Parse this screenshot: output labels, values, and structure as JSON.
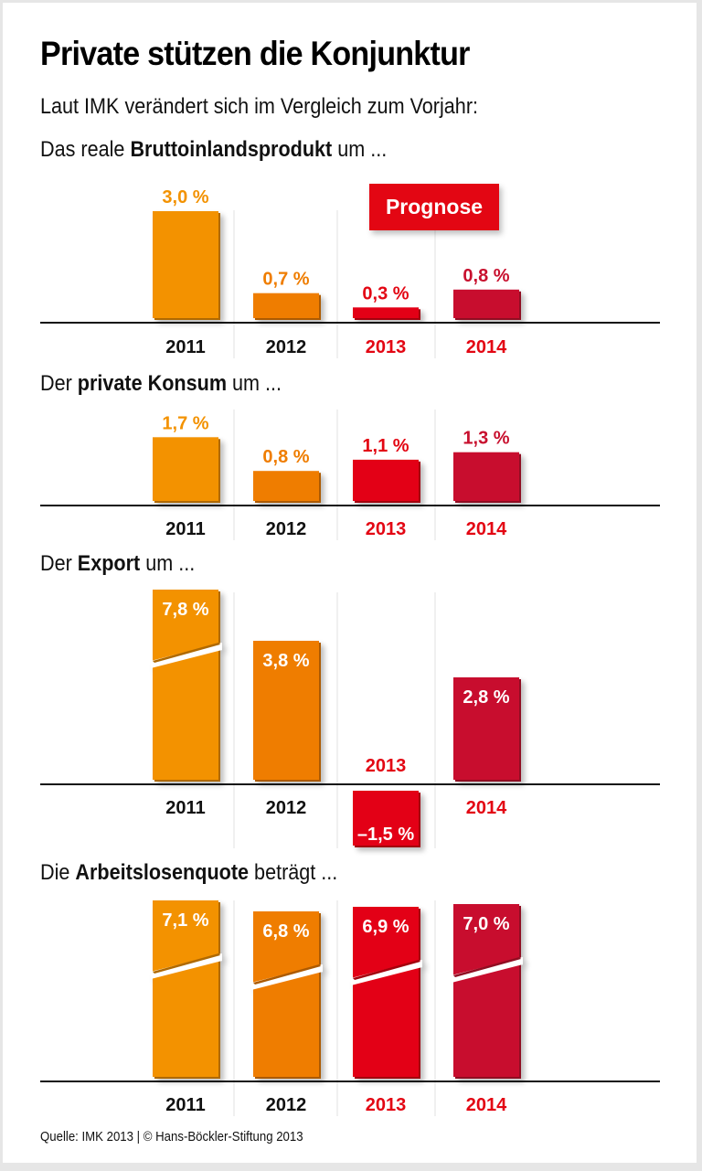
{
  "title": "Private stützen die Konjunktur",
  "subtitle": "Laut IMK verändert sich im Vergleich zum Vorjahr:",
  "prognose_label": "Prognose",
  "source": "Quelle: IMK 2013 | © Hans-Böckler-Stiftung 2013",
  "colors": {
    "2011": "#f39200",
    "2012": "#ef7d00",
    "2013": "#e30613",
    "2014": "#c8102e",
    "year_actual": "#111111",
    "year_forecast": "#e30613",
    "label_2011": "#f39200",
    "label_2012": "#ef7d00",
    "label_2013": "#e30613",
    "label_2014": "#c8102e"
  },
  "chart_data": [
    {
      "type": "bar",
      "title_pre": "Das reale ",
      "title_bold": "Bruttoinlandsprodukt",
      "title_post": " um ...",
      "categories": [
        "2011",
        "2012",
        "2013",
        "2014"
      ],
      "values": [
        3.0,
        0.7,
        0.3,
        0.8
      ],
      "labels": [
        "3,0 %",
        "0,7 %",
        "0,3 %",
        "0,8 %"
      ],
      "forecast": [
        false,
        false,
        true,
        true
      ],
      "broken": [
        false,
        false,
        false,
        false
      ],
      "unit": "%"
    },
    {
      "type": "bar",
      "title_pre": "Der ",
      "title_bold": "private Konsum",
      "title_post": " um ...",
      "categories": [
        "2011",
        "2012",
        "2013",
        "2014"
      ],
      "values": [
        1.7,
        0.8,
        1.1,
        1.3
      ],
      "labels": [
        "1,7 %",
        "0,8 %",
        "1,1 %",
        "1,3 %"
      ],
      "forecast": [
        false,
        false,
        true,
        true
      ],
      "broken": [
        false,
        false,
        false,
        false
      ],
      "unit": "%"
    },
    {
      "type": "bar",
      "title_pre": "Der ",
      "title_bold": "Export",
      "title_post": " um ...",
      "categories": [
        "2011",
        "2012",
        "2013",
        "2014"
      ],
      "values": [
        7.8,
        3.8,
        -1.5,
        2.8
      ],
      "labels": [
        "7,8 %",
        "3,8 %",
        "–1,5 %",
        "2,8 %"
      ],
      "forecast": [
        false,
        false,
        true,
        true
      ],
      "broken": [
        true,
        false,
        false,
        false
      ],
      "unit": "%"
    },
    {
      "type": "bar",
      "title_pre": "Die ",
      "title_bold": "Arbeitslosenquote",
      "title_post": " beträgt ...",
      "categories": [
        "2011",
        "2012",
        "2013",
        "2014"
      ],
      "values": [
        7.1,
        6.8,
        6.9,
        7.0
      ],
      "labels": [
        "7,1 %",
        "6,8 %",
        "6,9 %",
        "7,0 %"
      ],
      "forecast": [
        false,
        false,
        true,
        true
      ],
      "broken": [
        true,
        true,
        true,
        true
      ],
      "unit": "%"
    }
  ]
}
